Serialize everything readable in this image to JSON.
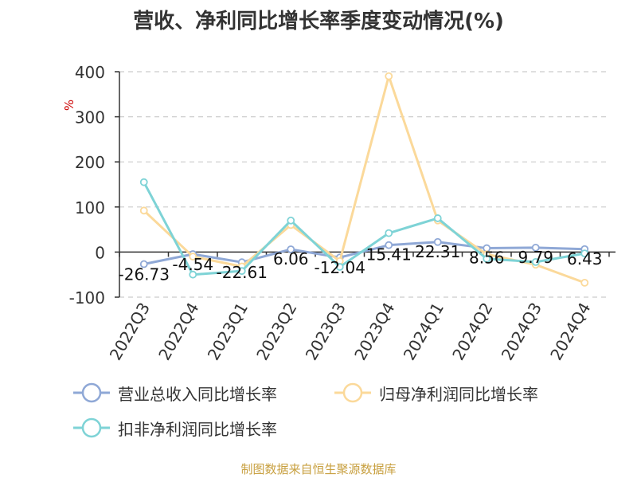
{
  "chart_data": {
    "type": "line",
    "title": "营收、净利同比增长率季度变动情况(%)",
    "ylabel": "%",
    "ylim": [
      -100,
      400
    ],
    "yticks": [
      -100,
      0,
      100,
      200,
      300,
      400
    ],
    "grid": true,
    "legend_position": "bottom",
    "categories": [
      "2022Q3",
      "2022Q4",
      "2023Q1",
      "2023Q2",
      "2023Q3",
      "2023Q4",
      "2024Q1",
      "2024Q2",
      "2024Q3",
      "2024Q4"
    ],
    "series": [
      {
        "name": "营业总收入同比增长率",
        "color": "#8fa8d6",
        "values": [
          -26.73,
          -4.54,
          -22.61,
          6.06,
          -12.04,
          15.41,
          22.31,
          8.56,
          9.79,
          6.43
        ],
        "data_labels": [
          "-26.73",
          "-4.54",
          "-22.61",
          "6.06",
          "-12.04",
          "15.41",
          "22.31",
          "8.56",
          "9.79",
          "6.43"
        ]
      },
      {
        "name": "归母净利润同比增长率",
        "color": "#fbd99a",
        "values": [
          92,
          -10,
          -32,
          60,
          -20,
          390,
          70,
          -5,
          -28,
          -68
        ]
      },
      {
        "name": "扣非净利润同比增长率",
        "color": "#7ed3d6",
        "values": [
          155,
          -50,
          -42,
          70,
          -33,
          42,
          75,
          -15,
          -22,
          -3
        ]
      }
    ]
  },
  "source": "制图数据来自恒生聚源数据库"
}
